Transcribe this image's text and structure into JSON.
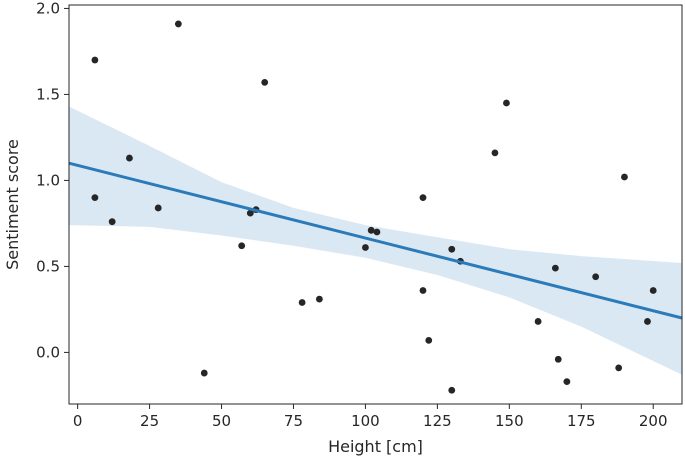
{
  "chart_data": {
    "type": "scatter",
    "title": "",
    "xlabel": "Height [cm]",
    "ylabel": "Sentiment score",
    "xlim": [
      -3,
      210
    ],
    "ylim": [
      -0.3,
      2.02
    ],
    "xticks": [
      0,
      25,
      50,
      75,
      100,
      125,
      150,
      175,
      200
    ],
    "yticks": [
      0.0,
      0.5,
      1.0,
      1.5,
      2.0
    ],
    "xtick_labels": [
      "0",
      "25",
      "50",
      "75",
      "100",
      "125",
      "150",
      "175",
      "200"
    ],
    "ytick_labels": [
      "0.0",
      "0.5",
      "1.0",
      "1.5",
      "2.0"
    ],
    "grid": false,
    "colors": {
      "points": "#262626",
      "regression_line": "#2b7bba",
      "confidence_band": "#bcd5ea",
      "axes": "#262626"
    },
    "points": [
      {
        "x": 6,
        "y": 1.7
      },
      {
        "x": 6,
        "y": 0.9
      },
      {
        "x": 12,
        "y": 0.76
      },
      {
        "x": 18,
        "y": 1.13
      },
      {
        "x": 28,
        "y": 0.84
      },
      {
        "x": 35,
        "y": 1.91
      },
      {
        "x": 44,
        "y": -0.12
      },
      {
        "x": 57,
        "y": 0.62
      },
      {
        "x": 60,
        "y": 0.81
      },
      {
        "x": 62,
        "y": 0.83
      },
      {
        "x": 65,
        "y": 1.57
      },
      {
        "x": 78,
        "y": 0.29
      },
      {
        "x": 84,
        "y": 0.31
      },
      {
        "x": 100,
        "y": 0.61
      },
      {
        "x": 102,
        "y": 0.71
      },
      {
        "x": 104,
        "y": 0.7
      },
      {
        "x": 120,
        "y": 0.9
      },
      {
        "x": 120,
        "y": 0.36
      },
      {
        "x": 122,
        "y": 0.07
      },
      {
        "x": 130,
        "y": 0.6
      },
      {
        "x": 130,
        "y": -0.22
      },
      {
        "x": 133,
        "y": 0.53
      },
      {
        "x": 145,
        "y": 1.16
      },
      {
        "x": 149,
        "y": 1.45
      },
      {
        "x": 160,
        "y": 0.18
      },
      {
        "x": 166,
        "y": 0.49
      },
      {
        "x": 167,
        "y": -0.04
      },
      {
        "x": 170,
        "y": -0.17
      },
      {
        "x": 180,
        "y": 0.44
      },
      {
        "x": 188,
        "y": -0.09
      },
      {
        "x": 190,
        "y": 1.02
      },
      {
        "x": 198,
        "y": 0.18
      },
      {
        "x": 200,
        "y": 0.36
      }
    ],
    "regression": {
      "x": [
        -3,
        210
      ],
      "y": [
        1.1,
        0.2
      ]
    },
    "confidence_band": [
      {
        "x": -3,
        "lower": 0.74,
        "upper": 1.43
      },
      {
        "x": 25,
        "lower": 0.73,
        "upper": 1.2
      },
      {
        "x": 50,
        "lower": 0.68,
        "upper": 0.99
      },
      {
        "x": 75,
        "lower": 0.62,
        "upper": 0.84
      },
      {
        "x": 100,
        "lower": 0.55,
        "upper": 0.74
      },
      {
        "x": 125,
        "lower": 0.45,
        "upper": 0.67
      },
      {
        "x": 150,
        "lower": 0.32,
        "upper": 0.6
      },
      {
        "x": 175,
        "lower": 0.15,
        "upper": 0.56
      },
      {
        "x": 210,
        "lower": -0.13,
        "upper": 0.52
      }
    ]
  }
}
